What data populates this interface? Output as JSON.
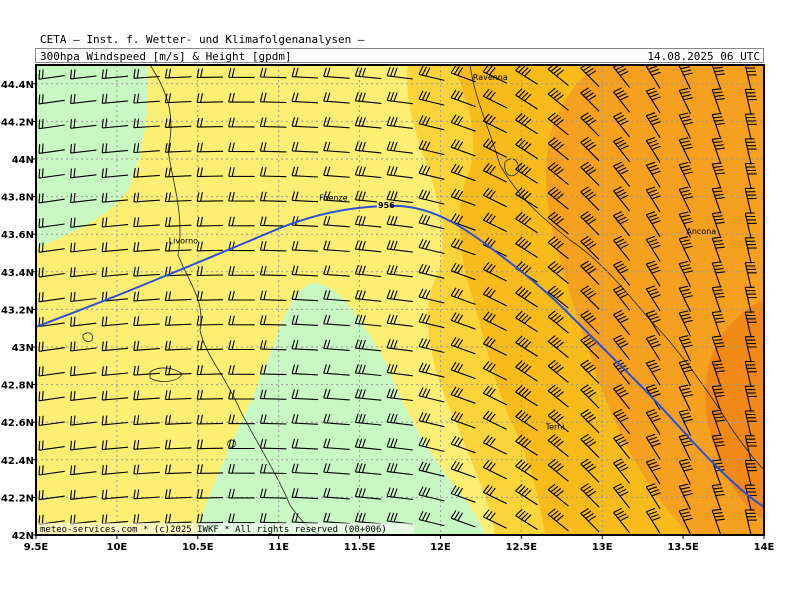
{
  "header": {
    "title": "CETA — Inst. f. Wetter- und Klimafolgenanalysen —",
    "subtitle": "300hpa Windspeed [m/s] & Height [gpdm]",
    "datetime": "14.08.2025 06 UTC"
  },
  "map": {
    "lon_range": [
      9.5,
      14.0
    ],
    "lat_range": [
      42.0,
      44.5
    ],
    "x_ticks": [
      "9.5E",
      "10E",
      "10.5E",
      "11E",
      "11.5E",
      "12E",
      "12.5E",
      "13E",
      "13.5E",
      "14E"
    ],
    "y_ticks": [
      "42N",
      "42.2N",
      "42.4N",
      "42.6N",
      "42.8N",
      "43N",
      "43.2N",
      "43.4N",
      "43.6N",
      "43.8N",
      "44N",
      "44.2N",
      "44.4N"
    ],
    "cities": [
      {
        "name": "Ravenna",
        "lon": 12.2,
        "lat": 44.42
      },
      {
        "name": "Firenze",
        "lon": 11.25,
        "lat": 43.78
      },
      {
        "name": "Livorno",
        "lon": 10.32,
        "lat": 43.55
      },
      {
        "name": "Ancona",
        "lon": 13.52,
        "lat": 43.6
      },
      {
        "name": "Terni",
        "lon": 12.65,
        "lat": 42.56
      }
    ],
    "contour_label": "956",
    "copyright": "meteo-services.com * (c)2025 IWKF * All rights reserved (00+006)",
    "colors": {
      "green": "#c8f9c3",
      "light_yellow": "#fcef74",
      "yellow": "#fbd43c",
      "gold": "#f7bb1c",
      "orange": "#f6a020",
      "dark_orange": "#f28917",
      "contour": "#2f50d6",
      "grid": "#999999"
    }
  }
}
